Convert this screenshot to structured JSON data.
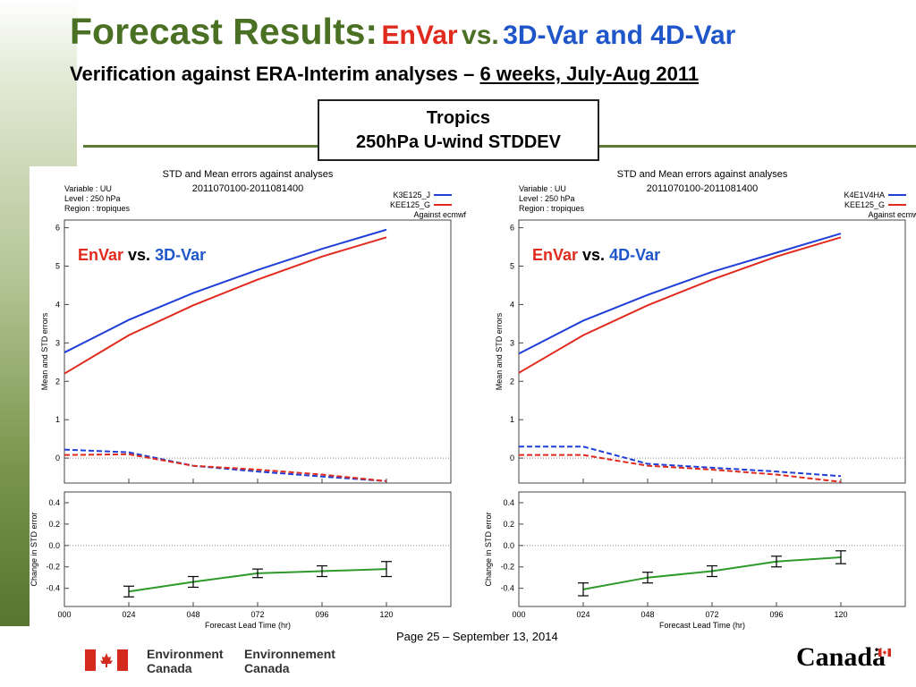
{
  "slide": {
    "title_main": "Forecast Results:",
    "title_envar": "EnVar",
    "title_vs": "vs.",
    "title_rest": "3D-Var and 4D-Var",
    "subtitle_a": "Verification against ERA-Interim analyses –",
    "subtitle_b": "6 weeks, July-Aug 2011",
    "box_line1": "Tropics",
    "box_line2": "250hPa U-wind STDDEV",
    "page_number": "Page 25 – September 13, 2014",
    "footer_en_1": "Environment",
    "footer_en_2": "Canada",
    "footer_fr_1": "Environnement",
    "footer_fr_2": "Canada",
    "wordmark": "Canadä",
    "colors": {
      "title_green": "#4a7023",
      "red": "#e02a1e",
      "blue": "#1f56c9"
    }
  },
  "chart_data": [
    {
      "type": "line",
      "title": "STD and Mean errors against analyses",
      "subtitle": "2011070100-2011081400",
      "info": [
        "Variable : UU",
        "Level : 250 hPa",
        "Region : tropiques"
      ],
      "legend": [
        "K3E125_J",
        "KEE125_G",
        "Against ecmwf"
      ],
      "annotation": {
        "a": "EnVar",
        "vs": "vs.",
        "b": "3D-Var"
      },
      "xlabel": "Forecast Lead Time (hr)",
      "ylabel_top": "Mean and STD errors",
      "ylabel_bottom": "Change in STD error",
      "x": [
        0,
        24,
        48,
        72,
        96,
        120
      ],
      "x_tick_labels": [
        "000",
        "024",
        "048",
        "072",
        "096",
        "120"
      ],
      "top_ylim": [
        -0.65,
        6.2
      ],
      "top_yticks": [
        0,
        1,
        2,
        3,
        4,
        5,
        6
      ],
      "series": [
        {
          "name": "K3E125_J",
          "color": "#1f3fd6",
          "dashed": false,
          "values": [
            2.75,
            3.6,
            4.3,
            4.9,
            5.45,
            5.95
          ]
        },
        {
          "name": "KEE125_G",
          "color": "#e02a1e",
          "dashed": false,
          "values": [
            2.2,
            3.2,
            3.98,
            4.65,
            5.25,
            5.75
          ]
        },
        {
          "color": "#1f3fd6",
          "dashed": true,
          "values": [
            0.22,
            0.15,
            -0.2,
            -0.35,
            -0.48,
            -0.6
          ]
        },
        {
          "color": "#e02a1e",
          "dashed": true,
          "values": [
            0.08,
            0.1,
            -0.2,
            -0.3,
            -0.43,
            -0.6
          ]
        }
      ],
      "diff_ylim": [
        -0.57,
        0.5
      ],
      "diff_yticks": [
        0.4,
        0.2,
        0.0,
        -0.2,
        -0.4
      ],
      "diff_values": [
        -0.43,
        -0.34,
        -0.26,
        -0.24,
        -0.22
      ],
      "diff_errors": [
        0.05,
        0.05,
        0.04,
        0.05,
        0.07
      ]
    },
    {
      "type": "line",
      "title": "STD and Mean errors against analyses",
      "subtitle": "2011070100-2011081400",
      "info": [
        "Variable : UU",
        "Level : 250 hPa",
        "Region : tropiques"
      ],
      "legend": [
        "K4E1V4HA",
        "KEE125_G",
        "Against ecmwf"
      ],
      "annotation": {
        "a": "EnVar",
        "vs": "vs.",
        "b": "4D-Var"
      },
      "xlabel": "Forecast Lead Time (hr)",
      "ylabel_top": "Mean and STD errors",
      "ylabel_bottom": "Change in STD error",
      "x": [
        0,
        24,
        48,
        72,
        96,
        120
      ],
      "x_tick_labels": [
        "000",
        "024",
        "048",
        "072",
        "096",
        "120"
      ],
      "top_ylim": [
        -0.65,
        6.2
      ],
      "top_yticks": [
        0,
        1,
        2,
        3,
        4,
        5,
        6
      ],
      "series": [
        {
          "name": "K4E1V4HA",
          "color": "#1f3fd6",
          "dashed": false,
          "values": [
            2.72,
            3.58,
            4.25,
            4.85,
            5.35,
            5.85
          ]
        },
        {
          "name": "KEE125_G",
          "color": "#e02a1e",
          "dashed": false,
          "values": [
            2.22,
            3.2,
            3.98,
            4.65,
            5.25,
            5.75
          ]
        },
        {
          "color": "#1f3fd6",
          "dashed": true,
          "values": [
            0.3,
            0.3,
            -0.15,
            -0.25,
            -0.35,
            -0.47
          ]
        },
        {
          "color": "#e02a1e",
          "dashed": true,
          "values": [
            0.08,
            0.08,
            -0.2,
            -0.3,
            -0.43,
            -0.62
          ]
        }
      ],
      "diff_ylim": [
        -0.57,
        0.5
      ],
      "diff_yticks": [
        0.4,
        0.2,
        0.0,
        -0.2,
        -0.4
      ],
      "diff_values": [
        -0.41,
        -0.3,
        -0.24,
        -0.15,
        -0.11
      ],
      "diff_errors": [
        0.06,
        0.05,
        0.05,
        0.05,
        0.06
      ]
    }
  ]
}
